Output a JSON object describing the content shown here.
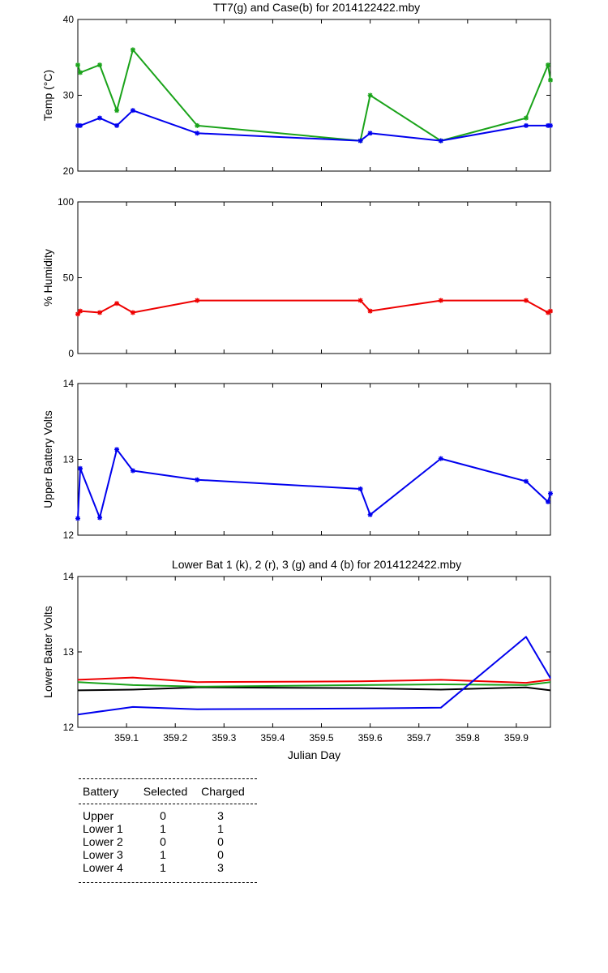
{
  "chart_data": [
    {
      "type": "line",
      "title": "TT7(g) and Case(b) for 2014122422.mby",
      "xlabel": "",
      "ylabel": "Temp  (°C)",
      "xlim": [
        359.0,
        359.97
      ],
      "ylim": [
        20,
        40
      ],
      "yticks": [
        20,
        30,
        40
      ],
      "series": [
        {
          "color": "#1aa31a",
          "marker": "*",
          "x": [
            359.0,
            359.005,
            359.045,
            359.08,
            359.113,
            359.245,
            359.58,
            359.6,
            359.745,
            359.92,
            359.965,
            359.97
          ],
          "y": [
            34,
            33,
            34,
            28,
            36,
            26,
            24,
            30,
            24,
            27,
            34,
            32
          ]
        },
        {
          "color": "#0000ee",
          "marker": "*",
          "x": [
            359.0,
            359.005,
            359.045,
            359.08,
            359.113,
            359.245,
            359.58,
            359.6,
            359.745,
            359.92,
            359.965,
            359.97
          ],
          "y": [
            26,
            26,
            27,
            26,
            28,
            25,
            24,
            25,
            24,
            26,
            26,
            26
          ]
        }
      ]
    },
    {
      "type": "line",
      "title": "",
      "xlabel": "",
      "ylabel": "% Humidity",
      "xlim": [
        359.0,
        359.97
      ],
      "ylim": [
        0,
        100
      ],
      "yticks": [
        0,
        50,
        100
      ],
      "series": [
        {
          "color": "#ee0000",
          "marker": "*",
          "x": [
            359.0,
            359.005,
            359.045,
            359.08,
            359.113,
            359.245,
            359.58,
            359.6,
            359.745,
            359.92,
            359.965,
            359.97
          ],
          "y": [
            26,
            28,
            27,
            33,
            27,
            35,
            35,
            28,
            35,
            35,
            27,
            28
          ]
        }
      ]
    },
    {
      "type": "line",
      "title": "",
      "xlabel": "",
      "ylabel": "Upper Battery Volts",
      "xlim": [
        359.0,
        359.97
      ],
      "ylim": [
        12,
        14
      ],
      "yticks": [
        12,
        13,
        14
      ],
      "series": [
        {
          "color": "#0000ee",
          "marker": "*",
          "x": [
            359.0,
            359.005,
            359.045,
            359.08,
            359.113,
            359.245,
            359.58,
            359.6,
            359.745,
            359.92,
            359.965,
            359.97
          ],
          "y": [
            12.22,
            12.88,
            12.23,
            13.13,
            12.85,
            12.73,
            12.61,
            12.27,
            13.01,
            12.71,
            12.44,
            12.55
          ]
        }
      ]
    },
    {
      "type": "line",
      "title": "Lower Bat 1 (k), 2 (r), 3 (g) and 4 (b) for 2014122422.mby",
      "xlabel": "Julian Day",
      "ylabel": "Lower Batter Volts",
      "xlim": [
        359.0,
        359.97
      ],
      "ylim": [
        12,
        14
      ],
      "yticks": [
        12,
        13,
        14
      ],
      "xticks": [
        359.1,
        359.2,
        359.3,
        359.4,
        359.5,
        359.6,
        359.7,
        359.8,
        359.9
      ],
      "xtick_labels": [
        "359.1",
        "359.2",
        "359.3",
        "359.4",
        "359.5",
        "359.6",
        "359.7",
        "359.8",
        "359.9"
      ],
      "series": [
        {
          "color": "#000000",
          "marker": "",
          "x": [
            359.0,
            359.113,
            359.245,
            359.58,
            359.745,
            359.92,
            359.97
          ],
          "y": [
            12.49,
            12.5,
            12.53,
            12.52,
            12.5,
            12.53,
            12.49
          ]
        },
        {
          "color": "#ee0000",
          "marker": "",
          "x": [
            359.0,
            359.113,
            359.245,
            359.58,
            359.745,
            359.92,
            359.97
          ],
          "y": [
            12.63,
            12.66,
            12.6,
            12.61,
            12.63,
            12.59,
            12.63
          ]
        },
        {
          "color": "#1aa31a",
          "marker": "",
          "x": [
            359.0,
            359.113,
            359.245,
            359.58,
            359.745,
            359.92,
            359.97
          ],
          "y": [
            12.6,
            12.56,
            12.54,
            12.56,
            12.57,
            12.56,
            12.6
          ]
        },
        {
          "color": "#0000ee",
          "marker": "",
          "x": [
            359.0,
            359.113,
            359.245,
            359.58,
            359.745,
            359.92,
            359.97
          ],
          "y": [
            12.17,
            12.27,
            12.24,
            12.25,
            12.26,
            13.2,
            12.65
          ]
        }
      ]
    }
  ],
  "battery_table": {
    "headers": [
      "Battery",
      "Selected",
      "Charged"
    ],
    "rows": [
      {
        "battery": "Upper",
        "selected": "0",
        "charged": "3"
      },
      {
        "battery": "Lower 1",
        "selected": "1",
        "charged": "1"
      },
      {
        "battery": "Lower 2",
        "selected": "0",
        "charged": "0"
      },
      {
        "battery": "Lower 3",
        "selected": "1",
        "charged": "0"
      },
      {
        "battery": "Lower 4",
        "selected": "1",
        "charged": "3"
      }
    ]
  }
}
